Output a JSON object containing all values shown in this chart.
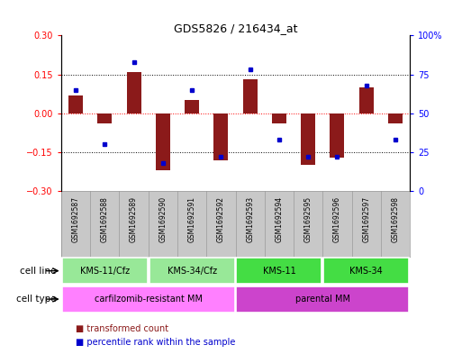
{
  "title": "GDS5826 / 216434_at",
  "samples": [
    "GSM1692587",
    "GSM1692588",
    "GSM1692589",
    "GSM1692590",
    "GSM1692591",
    "GSM1692592",
    "GSM1692593",
    "GSM1692594",
    "GSM1692595",
    "GSM1692596",
    "GSM1692597",
    "GSM1692598"
  ],
  "transformed_count": [
    0.07,
    -0.04,
    0.16,
    -0.22,
    0.05,
    -0.18,
    0.13,
    -0.04,
    -0.2,
    -0.17,
    0.1,
    -0.04
  ],
  "percentile_rank": [
    65,
    30,
    83,
    18,
    65,
    22,
    78,
    33,
    22,
    22,
    68,
    33
  ],
  "ylim_left": [
    -0.3,
    0.3
  ],
  "ylim_right": [
    0,
    100
  ],
  "yticks_left": [
    -0.3,
    -0.15,
    0,
    0.15,
    0.3
  ],
  "yticks_right": [
    0,
    25,
    50,
    75,
    100
  ],
  "bar_color": "#8B1A1A",
  "dot_color": "#0000CD",
  "cell_lines": [
    {
      "label": "KMS-11/Cfz",
      "start": 0,
      "end": 3,
      "color": "#98E898"
    },
    {
      "label": "KMS-34/Cfz",
      "start": 3,
      "end": 6,
      "color": "#98E898"
    },
    {
      "label": "KMS-11",
      "start": 6,
      "end": 9,
      "color": "#44DD44"
    },
    {
      "label": "KMS-34",
      "start": 9,
      "end": 12,
      "color": "#44DD44"
    }
  ],
  "cell_types": [
    {
      "label": "carfilzomib-resistant MM",
      "start": 0,
      "end": 6,
      "color": "#FF80FF"
    },
    {
      "label": "parental MM",
      "start": 6,
      "end": 12,
      "color": "#CC44CC"
    }
  ],
  "legend_bar_label": "transformed count",
  "legend_dot_label": "percentile rank within the sample",
  "sample_bg_color": "#C8C8C8",
  "sample_border_color": "#999999"
}
